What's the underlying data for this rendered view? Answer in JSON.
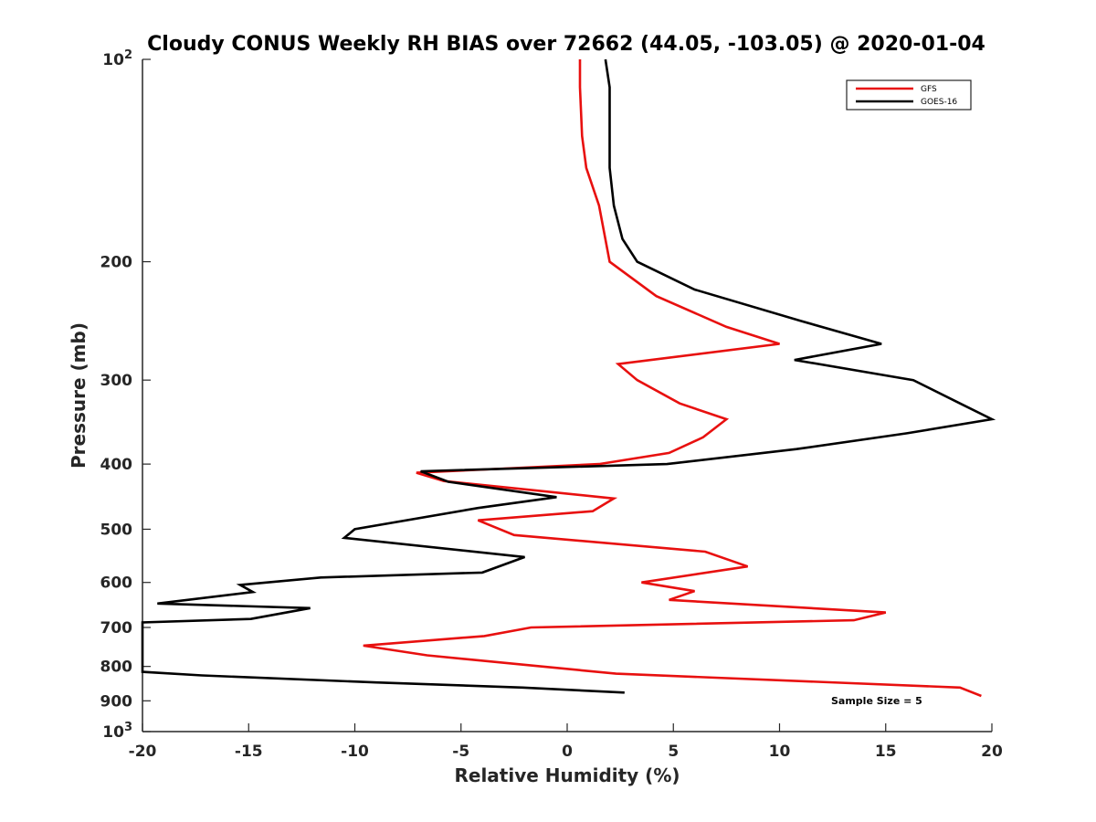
{
  "chart_data": {
    "type": "line",
    "title": "Cloudy CONUS Weekly RH BIAS over 72662 (44.05, -103.05) @ 2020-01-04",
    "xlabel": "Relative Humidity (%)",
    "ylabel": "Pressure (mb)",
    "xlim": [
      -20,
      20
    ],
    "ylim": [
      100,
      1000
    ],
    "y_scale": "log",
    "y_reversed": true,
    "grid": false,
    "legend_position": "top-right",
    "x_ticks": [
      "-20",
      "-15",
      "-10",
      "-5",
      "0",
      "5",
      "10",
      "15",
      "20"
    ],
    "y_ticks": [
      {
        "value": 100,
        "base": "10",
        "exp": "2"
      },
      {
        "value": 200,
        "label": "200"
      },
      {
        "value": 300,
        "label": "300"
      },
      {
        "value": 400,
        "label": "400"
      },
      {
        "value": 500,
        "label": "500"
      },
      {
        "value": 600,
        "label": "600"
      },
      {
        "value": 700,
        "label": "700"
      },
      {
        "value": 800,
        "label": "800"
      },
      {
        "value": 900,
        "label": "900"
      },
      {
        "value": 1000,
        "base": "10",
        "exp": "3"
      }
    ],
    "annotation": "Sample Size = 5",
    "series": [
      {
        "name": "GFS",
        "color": "#e8100f",
        "x": [
          0.6,
          0.6,
          0.7,
          0.9,
          1.5,
          2.0,
          4.2,
          7.5,
          10.0,
          2.4,
          3.3,
          5.3,
          7.5,
          6.4,
          4.8,
          1.5,
          -7.1,
          -5.8,
          2.2,
          1.2,
          -4.2,
          -2.5,
          6.5,
          8.5,
          3.5,
          6.0,
          4.8,
          15.0,
          13.5,
          -1.7,
          -3.9,
          -9.6,
          -6.6,
          -1.2,
          2.3,
          18.5,
          19.5
        ],
        "y": [
          100,
          110,
          130,
          145,
          165,
          200,
          225,
          250,
          265,
          284,
          300,
          325,
          343,
          365,
          385,
          400,
          412,
          424,
          450,
          470,
          485,
          510,
          540,
          568,
          600,
          618,
          637,
          665,
          683,
          700,
          721,
          745,
          770,
          800,
          820,
          860,
          885
        ]
      },
      {
        "name": "GOES-16",
        "color": "#000000",
        "x": [
          1.8,
          2.0,
          2.0,
          2.0,
          2.2,
          2.6,
          3.3,
          6.0,
          11.0,
          14.8,
          10.7,
          16.3,
          18.5,
          20.0,
          16.0,
          10.8,
          4.7,
          -6.9,
          -5.6,
          -0.5,
          -4.2,
          -10.0,
          -10.5,
          -2.0,
          -4.0,
          -11.6,
          -15.4,
          -14.8,
          -19.3,
          -12.1,
          -14.9,
          -20.0,
          -20.0,
          -17.2,
          -9.0,
          -2.1,
          2.7
        ],
        "y": [
          100,
          110,
          130,
          145,
          165,
          185,
          200,
          220,
          245,
          265,
          280,
          300,
          325,
          343,
          360,
          380,
          400,
          410,
          425,
          448,
          465,
          500,
          515,
          550,
          580,
          590,
          605,
          620,
          645,
          655,
          680,
          688,
          815,
          825,
          845,
          860,
          875
        ]
      }
    ]
  }
}
